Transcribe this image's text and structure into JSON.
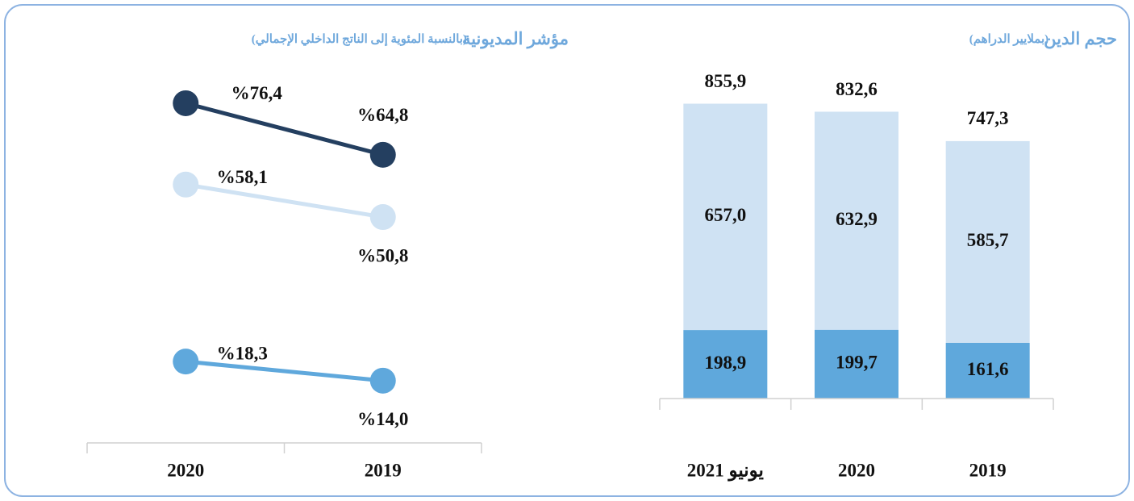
{
  "chart_data": [
    {
      "type": "bar",
      "stacked": true,
      "title": "حجم الدين",
      "subtitle": "(بملايير الدراهم)",
      "categories": [
        "2019",
        "2020",
        "يونيو 2021"
      ],
      "series": [
        {
          "color": "#5fa8dc",
          "values": [
            161.6,
            199.7,
            198.9
          ],
          "value_labels": [
            "161,6",
            "199,7",
            "198,9"
          ]
        },
        {
          "color": "#cfe2f3",
          "values": [
            585.7,
            632.9,
            657.0
          ],
          "value_labels": [
            "585,7",
            "632,9",
            "657,0"
          ]
        }
      ],
      "totals": [
        747.3,
        832.6,
        855.9
      ],
      "total_labels": [
        "747,3",
        "832,6",
        "855,9"
      ],
      "ylim": [
        0,
        1000
      ]
    },
    {
      "type": "line",
      "title": "مؤشر المديونية",
      "subtitle": "(بالنسبة المئوية إلى الناتج الداخلي الإجمالي)",
      "categories": [
        "2020",
        "2019"
      ],
      "series": [
        {
          "color": "#243f60",
          "values": [
            76.4,
            64.8
          ],
          "value_labels": [
            "%76,4",
            "%64,8"
          ]
        },
        {
          "color": "#cfe2f3",
          "values": [
            58.1,
            50.8
          ],
          "value_labels": [
            "%58,1",
            "%50,8"
          ]
        },
        {
          "color": "#5fa8dc",
          "values": [
            18.3,
            14.0
          ],
          "value_labels": [
            "%18,3",
            "%14,0"
          ]
        }
      ],
      "ylim": [
        0,
        90
      ]
    }
  ]
}
